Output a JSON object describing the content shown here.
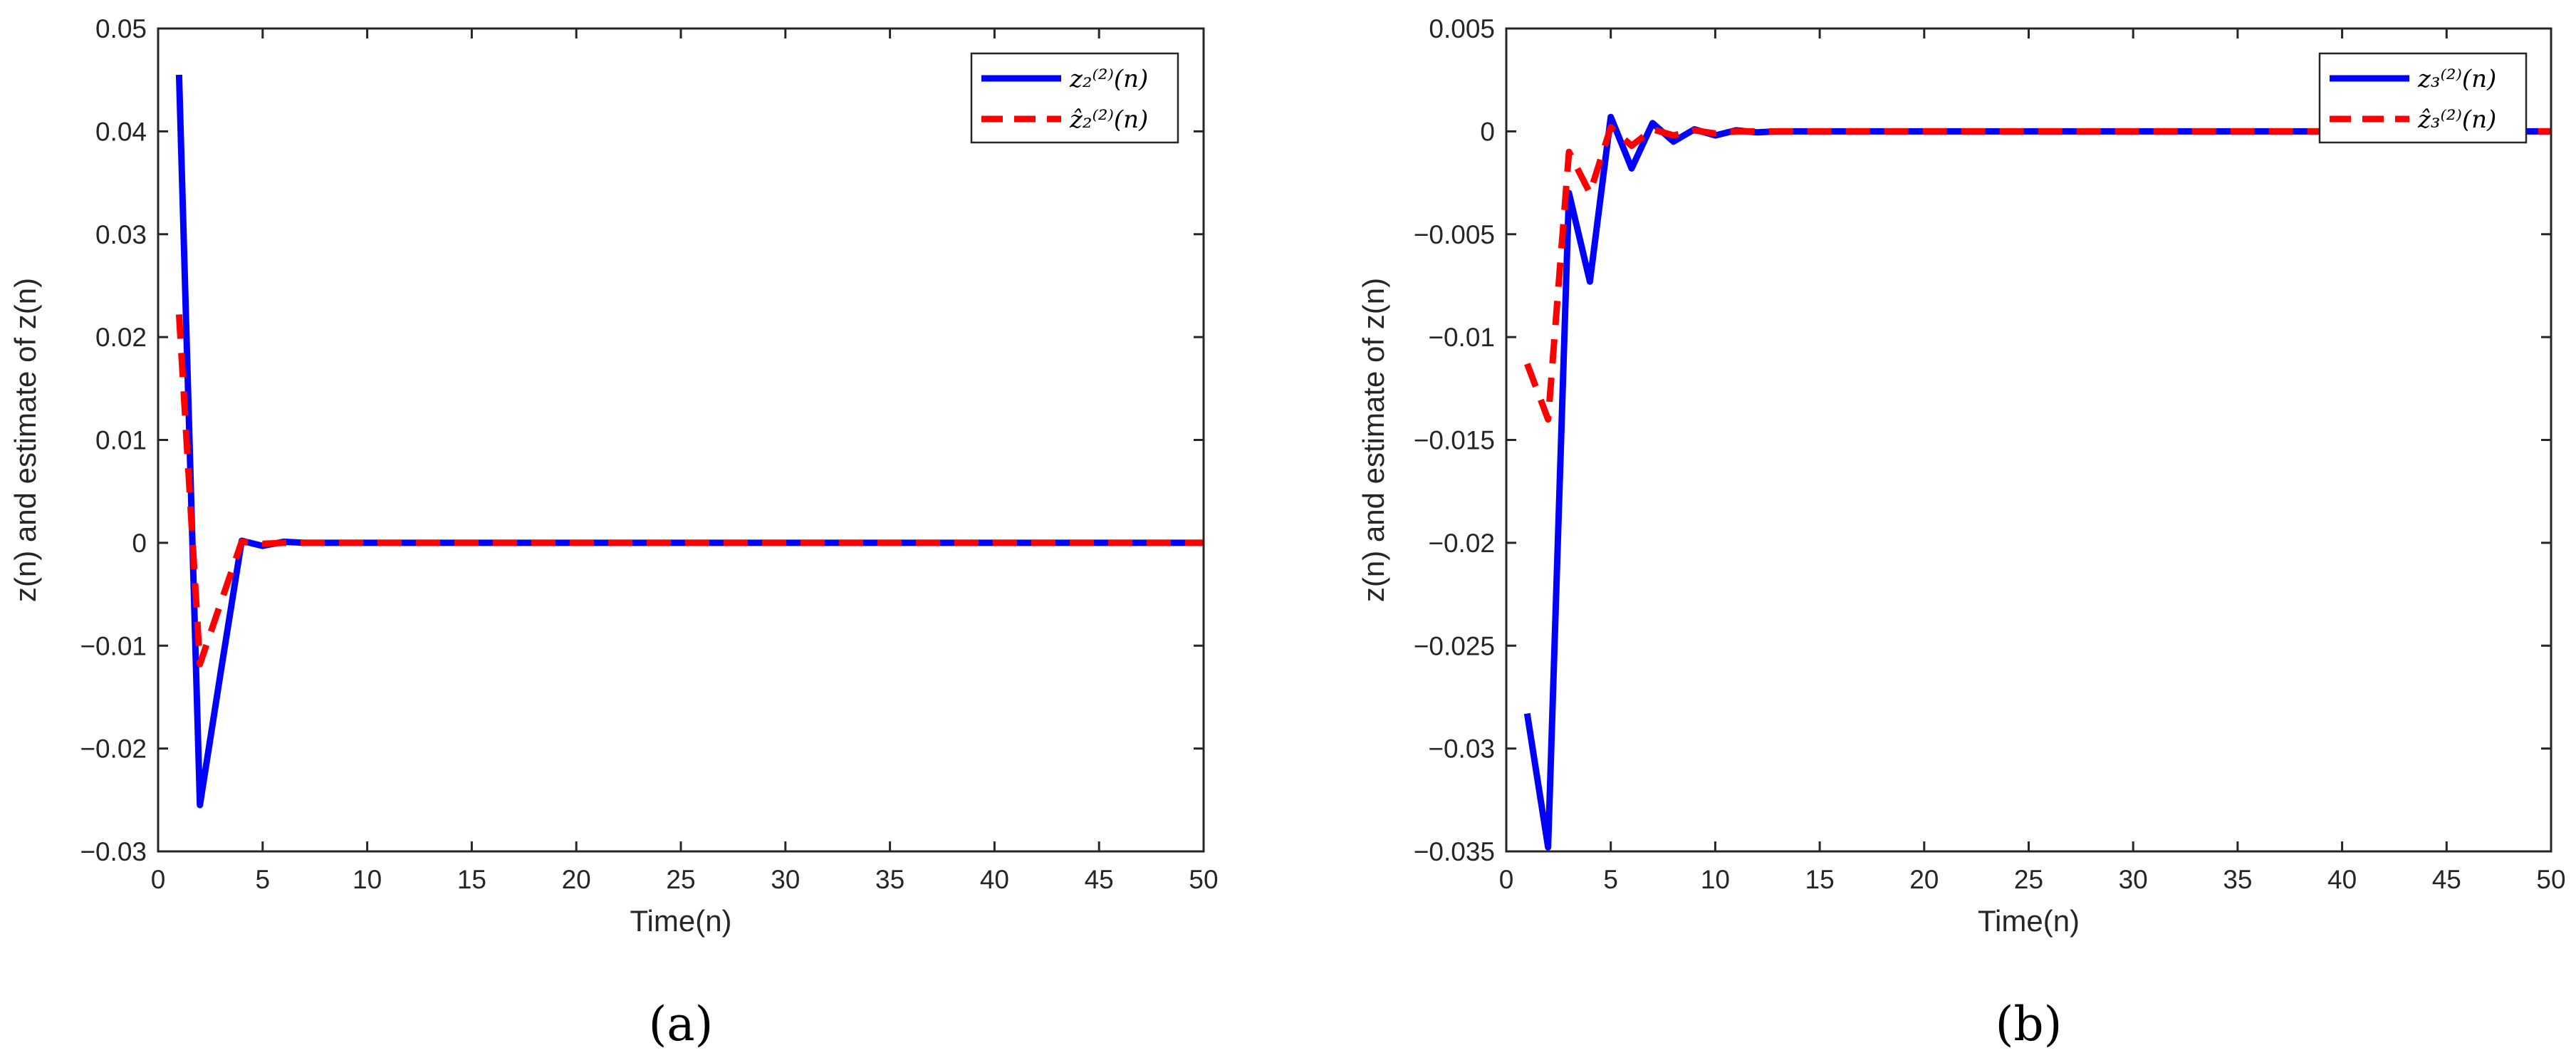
{
  "chart_data": [
    {
      "type": "line",
      "caption": "(a)",
      "xlabel": "Time(n)",
      "ylabel": "z(n) and estimate of z(n)",
      "xlim": [
        0,
        50
      ],
      "ylim": [
        -0.03,
        0.05
      ],
      "xticks": [
        "0",
        "5",
        "10",
        "15",
        "20",
        "25",
        "30",
        "35",
        "40",
        "45",
        "50"
      ],
      "yticks": [
        "−0.03",
        "−0.02",
        "−0.01",
        "0",
        "0.01",
        "0.02",
        "0.03",
        "0.04",
        "0.05"
      ],
      "grid": false,
      "legend_position": "top-right",
      "series": [
        {
          "name": "z₂⁽²⁾(n)",
          "style": "solid",
          "color": "#0000ff",
          "x": [
            1,
            2,
            3,
            4,
            5,
            6,
            7,
            8,
            9,
            10,
            11,
            12,
            13,
            14,
            15,
            16,
            17,
            18,
            19,
            20,
            21,
            22,
            23,
            24,
            25,
            26,
            27,
            28,
            29,
            30,
            31,
            32,
            33,
            34,
            35,
            36,
            37,
            38,
            39,
            40,
            41,
            42,
            43,
            44,
            45,
            46,
            47,
            48,
            49,
            50
          ],
          "y": [
            0.0455,
            -0.0255,
            -0.0125,
            0.0002,
            -0.0003,
            0.0001,
            0,
            0,
            0,
            0,
            0,
            0,
            0,
            0,
            0,
            0,
            0,
            0,
            0,
            0,
            0,
            0,
            0,
            0,
            0,
            0,
            0,
            0,
            0,
            0,
            0,
            0,
            0,
            0,
            0,
            0,
            0,
            0,
            0,
            0,
            0,
            0,
            0,
            0,
            0,
            0,
            0,
            0,
            0,
            0
          ]
        },
        {
          "name": "ẑ₂⁽²⁾(n)",
          "style": "dashed",
          "color": "#ff0000",
          "x": [
            1,
            2,
            3,
            4,
            5,
            6,
            7,
            8,
            9,
            10,
            11,
            12,
            13,
            14,
            15,
            16,
            17,
            18,
            19,
            20,
            21,
            22,
            23,
            24,
            25,
            26,
            27,
            28,
            29,
            30,
            31,
            32,
            33,
            34,
            35,
            36,
            37,
            38,
            39,
            40,
            41,
            42,
            43,
            44,
            45,
            46,
            47,
            48,
            49,
            50
          ],
          "y": [
            0.0222,
            -0.0118,
            -0.0058,
            0.0001,
            -0.0001,
            0,
            0,
            0,
            0,
            0,
            0,
            0,
            0,
            0,
            0,
            0,
            0,
            0,
            0,
            0,
            0,
            0,
            0,
            0,
            0,
            0,
            0,
            0,
            0,
            0,
            0,
            0,
            0,
            0,
            0,
            0,
            0,
            0,
            0,
            0,
            0,
            0,
            0,
            0,
            0,
            0,
            0,
            0,
            0,
            0
          ]
        }
      ]
    },
    {
      "type": "line",
      "caption": "(b)",
      "xlabel": "Time(n)",
      "ylabel": "z(n) and estimate of z(n)",
      "xlim": [
        0,
        50
      ],
      "ylim": [
        -0.035,
        0.005
      ],
      "xticks": [
        "0",
        "5",
        "10",
        "15",
        "20",
        "25",
        "30",
        "35",
        "40",
        "45",
        "50"
      ],
      "yticks": [
        "−0.035",
        "−0.03",
        "−0.025",
        "−0.02",
        "−0.015",
        "−0.01",
        "−0.005",
        "0",
        "0.005"
      ],
      "grid": false,
      "legend_position": "top-right",
      "series": [
        {
          "name": "z₃⁽²⁾(n)",
          "style": "solid",
          "color": "#0000ff",
          "x": [
            1,
            2,
            3,
            4,
            5,
            6,
            7,
            8,
            9,
            10,
            11,
            12,
            13,
            14,
            15,
            16,
            17,
            18,
            19,
            20,
            21,
            22,
            23,
            24,
            25,
            26,
            27,
            28,
            29,
            30,
            31,
            32,
            33,
            34,
            35,
            36,
            37,
            38,
            39,
            40,
            41,
            42,
            43,
            44,
            45,
            46,
            47,
            48,
            49,
            50
          ],
          "y": [
            -0.0283,
            -0.0348,
            -0.003,
            -0.0073,
            0.0007,
            -0.0018,
            0.0004,
            -0.0005,
            0.0001,
            -0.0002,
            5e-05,
            -5e-05,
            0,
            0,
            0,
            0,
            0,
            0,
            0,
            0,
            0,
            0,
            0,
            0,
            0,
            0,
            0,
            0,
            0,
            0,
            0,
            0,
            0,
            0,
            0,
            0,
            0,
            0,
            0,
            0,
            0,
            0,
            0,
            0,
            0,
            0,
            0,
            0,
            0,
            0
          ]
        },
        {
          "name": "ẑ₃⁽²⁾(n)",
          "style": "dashed",
          "color": "#ff0000",
          "x": [
            1,
            2,
            3,
            4,
            5,
            6,
            7,
            8,
            9,
            10,
            11,
            12,
            13,
            14,
            15,
            16,
            17,
            18,
            19,
            20,
            21,
            22,
            23,
            24,
            25,
            26,
            27,
            28,
            29,
            30,
            31,
            32,
            33,
            34,
            35,
            36,
            37,
            38,
            39,
            40,
            41,
            42,
            43,
            44,
            45,
            46,
            47,
            48,
            49,
            50
          ],
          "y": [
            -0.0113,
            -0.014,
            -0.001,
            -0.003,
            0.0002,
            -0.0007,
            0.0001,
            -0.0002,
            5e-05,
            -0.0001,
            0,
            0,
            0,
            0,
            0,
            0,
            0,
            0,
            0,
            0,
            0,
            0,
            0,
            0,
            0,
            0,
            0,
            0,
            0,
            0,
            0,
            0,
            0,
            0,
            0,
            0,
            0,
            0,
            0,
            0,
            0,
            0,
            0,
            0,
            0,
            0,
            0,
            0,
            0,
            0
          ]
        }
      ]
    }
  ]
}
